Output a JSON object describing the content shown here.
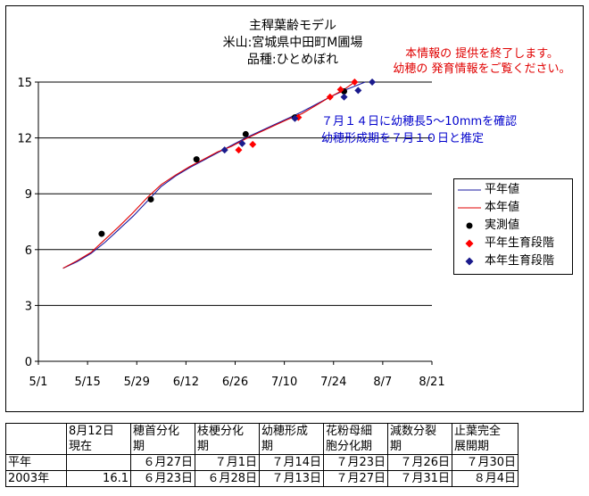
{
  "title": {
    "line1": "主稈葉齢モデル",
    "line2": "米山:宮城県中田町M圃場",
    "line3": "品種:ひとめぼれ"
  },
  "notice": {
    "line1": "本情報の 提供を終了します。",
    "line2": "幼穂の 発育情報をご覧ください。"
  },
  "annotation": {
    "line1": "７月１４日に幼穂長5～10mmを確認",
    "line2": "幼穂形成期を７月１０日と推定"
  },
  "colors": {
    "normal_line": "#1a1aa0",
    "current_line": "#e00000",
    "observed": "#000000",
    "normal_stage": "#ff0000",
    "current_stage": "#1a1a8c"
  },
  "chart_data": {
    "type": "line",
    "title": "主稈葉齢モデル 米山:宮城県中田町M圃場 品種:ひとめぼれ",
    "xlabel": "",
    "ylabel": "",
    "x_ticks": [
      "5/1",
      "5/15",
      "5/29",
      "6/12",
      "6/26",
      "7/10",
      "7/24",
      "8/7",
      "8/21"
    ],
    "y_ticks": [
      "0",
      "3",
      "6",
      "9",
      "12",
      "15"
    ],
    "xlim": [
      "5/1",
      "8/21"
    ],
    "ylim": [
      0,
      15
    ],
    "grid": "horizontal",
    "legend_position": "right",
    "legend": [
      "平年値",
      "本年値",
      "実測値",
      "平年生育段階",
      "本年生育段階"
    ],
    "series": [
      {
        "name": "平年値",
        "kind": "line",
        "points": [
          [
            "5/8",
            5.0
          ],
          [
            "5/12",
            5.35
          ],
          [
            "5/16",
            5.8
          ],
          [
            "5/20",
            6.4
          ],
          [
            "5/24",
            7.1
          ],
          [
            "5/28",
            7.8
          ],
          [
            "6/1",
            8.6
          ],
          [
            "6/5",
            9.4
          ],
          [
            "6/9",
            9.95
          ],
          [
            "6/13",
            10.4
          ],
          [
            "6/17",
            10.8
          ],
          [
            "6/21",
            11.2
          ],
          [
            "6/25",
            11.6
          ],
          [
            "6/29",
            12.0
          ],
          [
            "7/3",
            12.35
          ],
          [
            "7/7",
            12.7
          ],
          [
            "7/11",
            13.05
          ],
          [
            "7/15",
            13.4
          ],
          [
            "7/19",
            13.8
          ],
          [
            "7/23",
            14.2
          ],
          [
            "7/27",
            14.55
          ],
          [
            "7/31",
            14.85
          ],
          [
            "8/2",
            15.0
          ]
        ]
      },
      {
        "name": "本年値",
        "kind": "line",
        "points": [
          [
            "5/8",
            5.0
          ],
          [
            "5/12",
            5.4
          ],
          [
            "5/16",
            5.85
          ],
          [
            "5/20",
            6.55
          ],
          [
            "5/24",
            7.25
          ],
          [
            "5/28",
            8.0
          ],
          [
            "6/1",
            8.8
          ],
          [
            "6/5",
            9.5
          ],
          [
            "6/9",
            10.0
          ],
          [
            "6/13",
            10.45
          ],
          [
            "6/17",
            10.85
          ],
          [
            "6/21",
            11.25
          ],
          [
            "6/25",
            11.55
          ],
          [
            "6/29",
            11.95
          ],
          [
            "7/3",
            12.3
          ],
          [
            "7/7",
            12.65
          ],
          [
            "7/11",
            13.0
          ],
          [
            "7/15",
            13.3
          ],
          [
            "7/19",
            13.75
          ],
          [
            "7/23",
            14.2
          ],
          [
            "7/27",
            14.6
          ],
          [
            "7/30",
            15.0
          ]
        ]
      },
      {
        "name": "実測値",
        "kind": "scatter",
        "points": [
          [
            "5/19",
            6.85
          ],
          [
            "6/2",
            8.7
          ],
          [
            "6/15",
            10.85
          ],
          [
            "6/29",
            12.2
          ],
          [
            "7/13",
            13.1
          ],
          [
            "7/27",
            14.5
          ]
        ]
      },
      {
        "name": "平年生育段階",
        "kind": "scatter",
        "points": [
          [
            "6/27",
            11.35
          ],
          [
            "7/1",
            11.65
          ],
          [
            "7/14",
            13.1
          ],
          [
            "7/23",
            14.2
          ],
          [
            "7/26",
            14.6
          ],
          [
            "7/30",
            15.0
          ]
        ]
      },
      {
        "name": "本年生育段階",
        "kind": "scatter",
        "points": [
          [
            "6/23",
            11.35
          ],
          [
            "6/28",
            11.7
          ],
          [
            "7/13",
            13.05
          ],
          [
            "7/27",
            14.2
          ],
          [
            "7/31",
            14.55
          ],
          [
            "8/4",
            15.0
          ]
        ]
      }
    ]
  },
  "table": {
    "headers": [
      "",
      "8月12日\n現在",
      "穂首分化\n期",
      "枝梗分化\n期",
      "幼穂形成\n期",
      "花粉母細\n胞分化期",
      "減数分裂\n期",
      "止葉完全\n展開期"
    ],
    "rows": [
      [
        "平年",
        "",
        "６月27日",
        "７月1日",
        "７月14日",
        "７月23日",
        "７月26日",
        "７月30日"
      ],
      [
        "2003年",
        "16.1",
        "６月23日",
        "６月28日",
        "７月13日",
        "７月27日",
        "７月31日",
        "８月4日"
      ]
    ]
  }
}
